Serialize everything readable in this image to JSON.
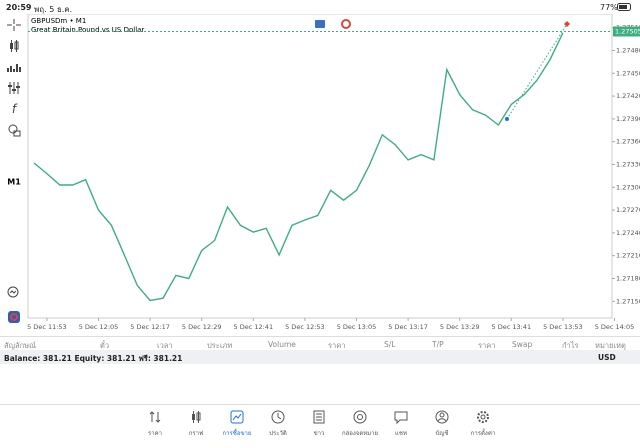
{
  "status_bar": {
    "time": "20:59",
    "date": "พฤ. 5 ธ.ค.",
    "battery": "77%"
  },
  "chart_header": {
    "symbol": "GBPUSDm • M1",
    "description": "Great Britain Pound vs US Dollar",
    "timeframe": "M1"
  },
  "chart_data": {
    "type": "line",
    "categories": [
      null,
      "5 Dec 11:53",
      null,
      null,
      null,
      "5 Dec 12:05",
      null,
      null,
      null,
      "5 Dec 12:17",
      null,
      null,
      null,
      "5 Dec 12:29",
      null,
      null,
      null,
      "5 Dec 12:41",
      null,
      null,
      null,
      "5 Dec 12:53",
      null,
      null,
      null,
      "5 Dec 13:05",
      null,
      null,
      null,
      "5 Dec 13:17",
      null,
      null,
      null,
      "5 Dec 13:29",
      null,
      null,
      null,
      "5 Dec 13:41",
      null,
      null,
      null,
      "5 Dec 13:53",
      null,
      null,
      null,
      "5 Dec 14:05"
    ],
    "series": [
      {
        "name": "GBPUSDm",
        "color": "#3dae7f",
        "values": [
          1.27332,
          1.27318,
          1.27303,
          1.27303,
          1.2731,
          1.2727,
          1.2725,
          1.27211,
          1.27171,
          1.27151,
          1.27154,
          1.27184,
          1.2718,
          1.27217,
          1.2723,
          1.27274,
          1.2725,
          1.27241,
          1.27246,
          1.27211,
          1.2725,
          1.27257,
          1.27263,
          1.27296,
          1.27283,
          1.27296,
          1.27329,
          1.27369,
          1.27356,
          1.27336,
          1.27343,
          1.27336,
          1.27455,
          1.27422,
          1.27402,
          1.27395,
          1.27382,
          1.27409,
          1.27422,
          1.27441,
          1.27468,
          1.27503,
          null,
          null,
          null,
          null
        ]
      }
    ],
    "ylim": [
      1.27128,
      1.27528
    ],
    "yticks": [
      {
        "value": 1.2715,
        "label": "1.27150"
      },
      {
        "value": 1.2718,
        "label": "1.27180"
      },
      {
        "value": 1.2721,
        "label": "1.27210"
      },
      {
        "value": 1.2724,
        "label": "1.27240"
      },
      {
        "value": 1.2727,
        "label": "1.27270"
      },
      {
        "value": 1.273,
        "label": "1.27300"
      },
      {
        "value": 1.2733,
        "label": "1.27330"
      },
      {
        "value": 1.2736,
        "label": "1.27360"
      },
      {
        "value": 1.2739,
        "label": "1.27390"
      },
      {
        "value": 1.2742,
        "label": "1.27420"
      },
      {
        "value": 1.2745,
        "label": "1.27450"
      },
      {
        "value": 1.2748,
        "label": "1.27480"
      },
      {
        "value": 1.2751,
        "label": "1.27510"
      }
    ],
    "current_price": {
      "value": 1.27505,
      "label": "1.27505"
    },
    "grid": false
  },
  "table_header": [
    "สัญลักษณ์",
    "ตั๋ว",
    "เวลา",
    "ประเภท",
    "Volume",
    "ราคา",
    "S/L",
    "T/P",
    "ราคา",
    "Swap",
    "กำไร",
    "หมายเหตุ"
  ],
  "balance_bar": {
    "text": "Balance: 381.21 Equity: 381.21 ฟรี: 381.21",
    "currency": "USD"
  },
  "tab_bar": [
    "ราคา",
    "กราฟ",
    "การซื้อขาย",
    "ประวัติ",
    "ข่าว",
    "กล่องจดหมาย",
    "แชท",
    "บัญชี",
    "การตั้งค่า"
  ]
}
